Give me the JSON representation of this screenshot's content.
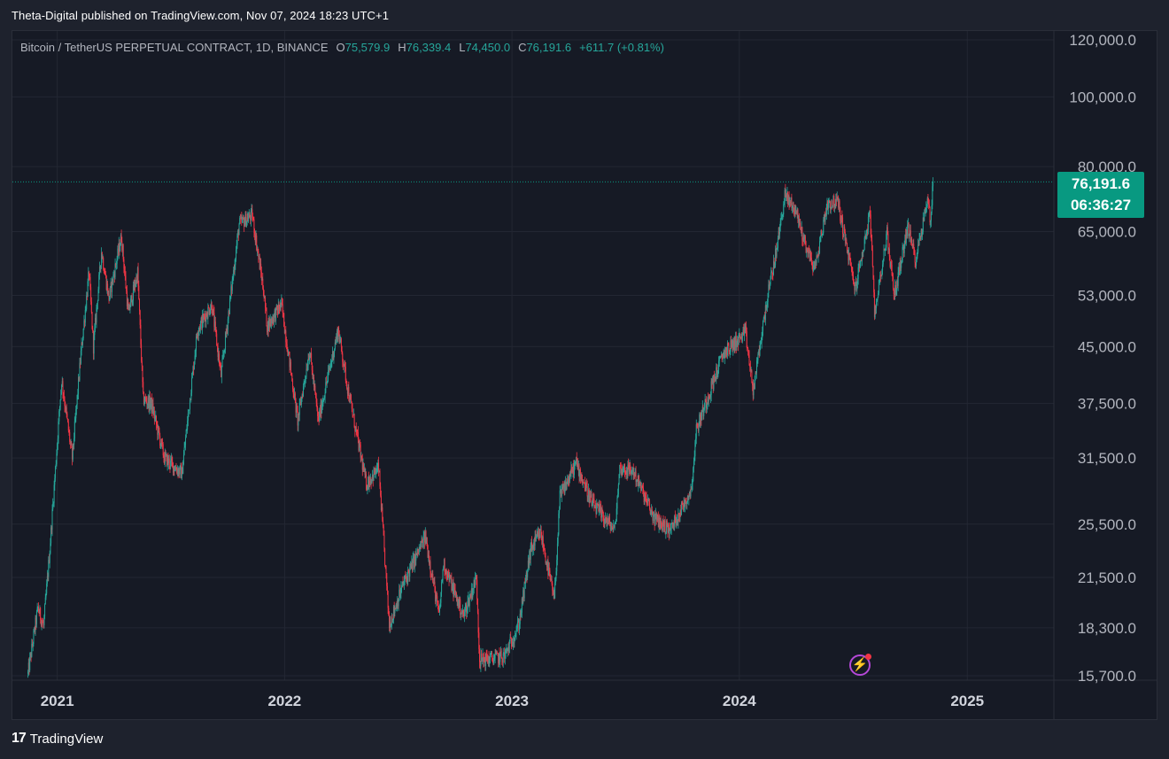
{
  "header": {
    "published": "Theta-Digital published on TradingView.com, Nov 07, 2024 18:23 UTC+1"
  },
  "legend": {
    "symbol": "Bitcoin / TetherUS PERPETUAL CONTRACT, 1D, BINANCE",
    "o_label": "O",
    "o_value": "75,579.9",
    "h_label": "H",
    "h_value": "76,339.4",
    "l_label": "L",
    "l_value": "74,450.0",
    "c_label": "C",
    "c_value": "76,191.6",
    "change": "+611.7 (+0.81%)"
  },
  "price_tag": {
    "price": "76,191.6",
    "countdown": "06:36:27"
  },
  "footer": {
    "brand": "TradingView"
  },
  "colors": {
    "up": "#26a69a",
    "down": "#f23645",
    "tag": "#089981",
    "background": "#161a25"
  },
  "icons": {
    "alert": "lightning-bolt-icon"
  },
  "chart_data": {
    "type": "candlestick",
    "symbol": "BTCUSDT.P",
    "interval": "1D",
    "scale": "log",
    "ylim": [
      15700,
      120000
    ],
    "y_ticks": [
      {
        "value": 120000,
        "label": "120,000.0"
      },
      {
        "value": 100000,
        "label": "100,000.0"
      },
      {
        "value": 80000,
        "label": "80,000.0"
      },
      {
        "value": 65000,
        "label": "65,000.0"
      },
      {
        "value": 53000,
        "label": "53,000.0"
      },
      {
        "value": 45000,
        "label": "45,000.0"
      },
      {
        "value": 37500,
        "label": "37,500.0"
      },
      {
        "value": 31500,
        "label": "31,500.0"
      },
      {
        "value": 25500,
        "label": "25,500.0"
      },
      {
        "value": 21500,
        "label": "21,500.0"
      },
      {
        "value": 18300,
        "label": "18,300.0"
      },
      {
        "value": 15700,
        "label": "15,700.0"
      }
    ],
    "x_ticks": [
      {
        "date": "2021-01-01",
        "label": "2021"
      },
      {
        "date": "2022-01-01",
        "label": "2022"
      },
      {
        "date": "2023-01-01",
        "label": "2023"
      },
      {
        "date": "2024-01-01",
        "label": "2024"
      },
      {
        "date": "2025-01-01",
        "label": "2025"
      }
    ],
    "xlim": [
      "2020-10-21",
      "2025-05-20"
    ],
    "last_price": 76191.6,
    "price_path": [
      [
        "2020-11-15",
        15800
      ],
      [
        "2020-12-01",
        19500
      ],
      [
        "2020-12-10",
        18400
      ],
      [
        "2020-12-20",
        23500
      ],
      [
        "2021-01-08",
        40500
      ],
      [
        "2021-01-25",
        31500
      ],
      [
        "2021-02-08",
        44000
      ],
      [
        "2021-02-21",
        57000
      ],
      [
        "2021-02-28",
        45000
      ],
      [
        "2021-03-13",
        61000
      ],
      [
        "2021-03-25",
        52500
      ],
      [
        "2021-04-14",
        64000
      ],
      [
        "2021-04-25",
        50000
      ],
      [
        "2021-05-10",
        57000
      ],
      [
        "2021-05-19",
        38000
      ],
      [
        "2021-06-01",
        37500
      ],
      [
        "2021-06-22",
        31500
      ],
      [
        "2021-07-20",
        30000
      ],
      [
        "2021-08-14",
        47500
      ],
      [
        "2021-09-06",
        51500
      ],
      [
        "2021-09-21",
        41000
      ],
      [
        "2021-10-20",
        66500
      ],
      [
        "2021-11-10",
        68500
      ],
      [
        "2021-11-28",
        54000
      ],
      [
        "2021-12-04",
        48000
      ],
      [
        "2021-12-27",
        51500
      ],
      [
        "2022-01-22",
        35500
      ],
      [
        "2022-02-10",
        44500
      ],
      [
        "2022-02-24",
        35500
      ],
      [
        "2022-03-28",
        47500
      ],
      [
        "2022-04-12",
        39500
      ],
      [
        "2022-05-12",
        29000
      ],
      [
        "2022-06-01",
        30500
      ],
      [
        "2022-06-18",
        18500
      ],
      [
        "2022-07-10",
        21000
      ],
      [
        "2022-08-15",
        24500
      ],
      [
        "2022-09-06",
        19000
      ],
      [
        "2022-09-13",
        22500
      ],
      [
        "2022-10-15",
        19000
      ],
      [
        "2022-11-05",
        21500
      ],
      [
        "2022-11-10",
        16500
      ],
      [
        "2022-12-20",
        16700
      ],
      [
        "2023-01-12",
        18500
      ],
      [
        "2023-01-31",
        23500
      ],
      [
        "2023-02-16",
        24800
      ],
      [
        "2023-03-10",
        20000
      ],
      [
        "2023-03-19",
        27800
      ],
      [
        "2023-04-14",
        31000
      ],
      [
        "2023-05-10",
        27200
      ],
      [
        "2023-06-15",
        25000
      ],
      [
        "2023-06-23",
        30500
      ],
      [
        "2023-07-15",
        30200
      ],
      [
        "2023-08-17",
        26000
      ],
      [
        "2023-09-12",
        25000
      ],
      [
        "2023-10-16",
        28500
      ],
      [
        "2023-10-24",
        34500
      ],
      [
        "2023-12-06",
        44000
      ],
      [
        "2024-01-11",
        47000
      ],
      [
        "2024-01-23",
        39000
      ],
      [
        "2024-02-14",
        52000
      ],
      [
        "2024-03-01",
        61500
      ],
      [
        "2024-03-14",
        73000
      ],
      [
        "2024-04-01",
        69500
      ],
      [
        "2024-04-13",
        63500
      ],
      [
        "2024-05-01",
        57500
      ],
      [
        "2024-05-21",
        71000
      ],
      [
        "2024-06-07",
        71500
      ],
      [
        "2024-07-05",
        54000
      ],
      [
        "2024-07-29",
        69000
      ],
      [
        "2024-08-05",
        50000
      ],
      [
        "2024-08-25",
        64500
      ],
      [
        "2024-09-06",
        53000
      ],
      [
        "2024-09-27",
        66000
      ],
      [
        "2024-10-10",
        59500
      ],
      [
        "2024-10-29",
        72000
      ],
      [
        "2024-11-03",
        67500
      ],
      [
        "2024-11-07",
        76191.6
      ]
    ]
  }
}
